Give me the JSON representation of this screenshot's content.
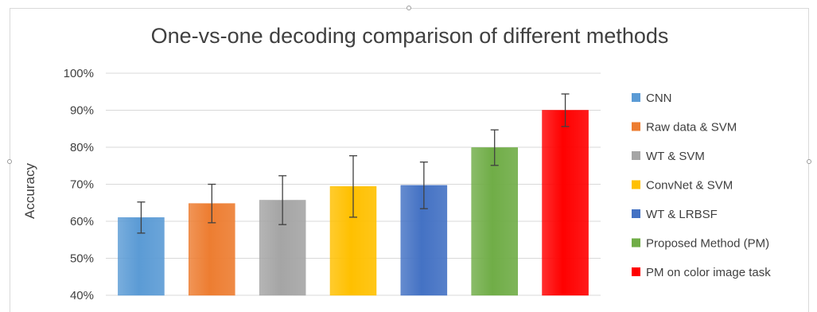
{
  "chart_data": {
    "type": "bar",
    "title": "One-vs-one decoding comparison of different methods",
    "ylabel": "Accuracy",
    "xlabel": "",
    "ylim": [
      40,
      100
    ],
    "yticks": [
      "40%",
      "50%",
      "60%",
      "70%",
      "80%",
      "90%",
      "100%"
    ],
    "grid": true,
    "legend_position": "right",
    "series": [
      {
        "name": "CNN",
        "value": 61,
        "error": 4.2,
        "color": "#5b9bd5"
      },
      {
        "name": "Raw data & SVM",
        "value": 64.8,
        "error": 5.2,
        "color": "#ed7d31"
      },
      {
        "name": "WT & SVM",
        "value": 65.7,
        "error": 6.6,
        "color": "#a5a5a5"
      },
      {
        "name": "ConvNet & SVM",
        "value": 69.4,
        "error": 8.3,
        "color": "#ffc000"
      },
      {
        "name": "WT & LRBSF",
        "value": 69.7,
        "error": 6.3,
        "color": "#4472c4"
      },
      {
        "name": "Proposed Method (PM)",
        "value": 79.9,
        "error": 4.8,
        "color": "#70ad47"
      },
      {
        "name": "PM on color image task",
        "value": 90,
        "error": 4.4,
        "color": "#ff0000"
      }
    ]
  }
}
